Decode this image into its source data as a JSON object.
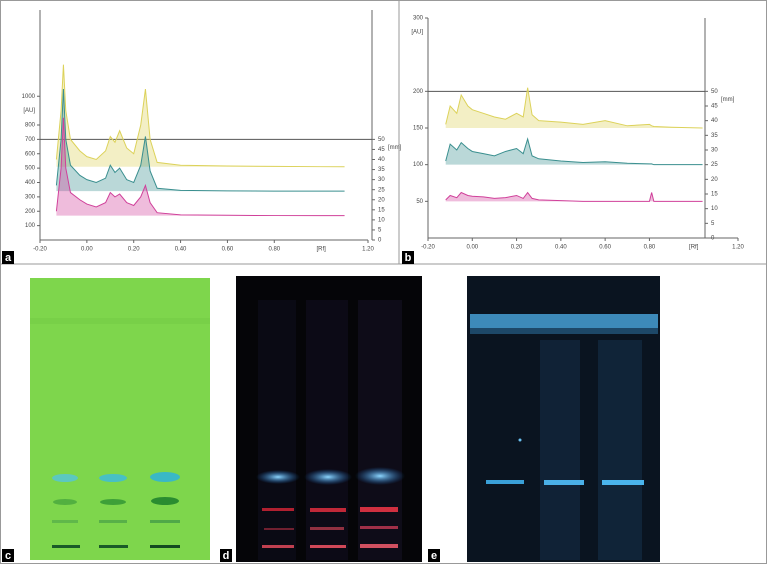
{
  "panel_labels": [
    "a",
    "b",
    "c",
    "d",
    "e"
  ],
  "chart_data": [
    {
      "type": "line",
      "xlim": [
        -0.2,
        1.2
      ],
      "xticks": [
        {
          "value": -0.2,
          "label": "-0.20"
        },
        {
          "value": 0,
          "label": "0.00"
        },
        {
          "value": 0.2,
          "label": "0.20"
        },
        {
          "value": 0.4,
          "label": "0.40"
        },
        {
          "value": 0.6,
          "label": "0.60"
        },
        {
          "value": 0.8,
          "label": "0.80"
        },
        {
          "value": 1.2,
          "label": "1.20"
        }
      ],
      "xlabel": "[Rf]",
      "ylim": [
        0,
        1600
      ],
      "yticks": [
        100,
        200,
        300,
        400,
        500,
        600,
        700,
        800,
        1000
      ],
      "ylabel": "[AU]",
      "y2lim": [
        0,
        114.3
      ],
      "y2ticks": [
        0,
        5,
        10,
        15,
        20,
        25,
        30,
        35,
        40,
        45,
        50
      ],
      "y2label": "[mm]",
      "reference_line": 700,
      "x": [
        -0.13,
        -0.11,
        -0.1,
        -0.09,
        -0.07,
        -0.03,
        0,
        0.04,
        0.08,
        0.1,
        0.12,
        0.14,
        0.17,
        0.2,
        0.23,
        0.25,
        0.27,
        0.3,
        0.4,
        0.6,
        0.8,
        1.0,
        1.1
      ],
      "series": [
        {
          "color": "#dcd25a",
          "values": [
            560,
            900,
            1220,
            900,
            700,
            620,
            580,
            560,
            620,
            720,
            680,
            760,
            640,
            600,
            800,
            1050,
            700,
            540,
            520,
            515,
            512,
            510,
            510
          ]
        },
        {
          "color": "#3a8f8f",
          "values": [
            380,
            700,
            1050,
            700,
            520,
            450,
            420,
            400,
            430,
            520,
            470,
            500,
            420,
            400,
            520,
            720,
            480,
            360,
            345,
            342,
            340,
            340,
            340
          ]
        },
        {
          "color": "#d0409a",
          "values": [
            200,
            500,
            850,
            500,
            330,
            280,
            250,
            230,
            260,
            330,
            300,
            320,
            260,
            240,
            300,
            380,
            260,
            190,
            175,
            172,
            170,
            170,
            170
          ]
        }
      ]
    },
    {
      "type": "line",
      "xlim": [
        -0.2,
        1.2
      ],
      "xticks": [
        {
          "value": -0.2,
          "label": "-0.20"
        },
        {
          "value": 0,
          "label": "0.00"
        },
        {
          "value": 0.2,
          "label": "0.20"
        },
        {
          "value": 0.4,
          "label": "0.40"
        },
        {
          "value": 0.6,
          "label": "0.60"
        },
        {
          "value": 0.8,
          "label": "0.80"
        },
        {
          "value": 1.2,
          "label": "1.20"
        }
      ],
      "xlabel": "[Rf]",
      "ylim": [
        0,
        300
      ],
      "yticks": [
        50,
        100,
        150,
        200,
        300
      ],
      "ylabel": "[AU]",
      "y2lim": [
        0,
        75
      ],
      "y2ticks": [
        0,
        5,
        10,
        15,
        20,
        25,
        30,
        35,
        40,
        45,
        50
      ],
      "y2label": "[mm]",
      "reference_line": 200,
      "x": [
        -0.12,
        -0.1,
        -0.07,
        -0.05,
        -0.02,
        0,
        0.05,
        0.1,
        0.15,
        0.2,
        0.23,
        0.25,
        0.27,
        0.3,
        0.4,
        0.5,
        0.6,
        0.7,
        0.8,
        0.81,
        0.82,
        0.9,
        1.04
      ],
      "series": [
        {
          "color": "#dcd25a",
          "values": [
            155,
            180,
            170,
            195,
            180,
            175,
            170,
            165,
            162,
            170,
            165,
            205,
            168,
            160,
            158,
            155,
            160,
            153,
            155,
            153,
            152,
            151,
            150
          ]
        },
        {
          "color": "#3a8f8f",
          "values": [
            105,
            128,
            120,
            130,
            122,
            118,
            115,
            112,
            118,
            122,
            115,
            135,
            112,
            108,
            105,
            103,
            104,
            102,
            101,
            101,
            100,
            100,
            100
          ]
        },
        {
          "color": "#d0409a",
          "values": [
            52,
            58,
            55,
            62,
            58,
            57,
            56,
            54,
            55,
            58,
            54,
            62,
            54,
            52,
            51,
            50,
            50,
            50,
            50,
            62,
            50,
            50,
            50
          ]
        }
      ]
    }
  ]
}
